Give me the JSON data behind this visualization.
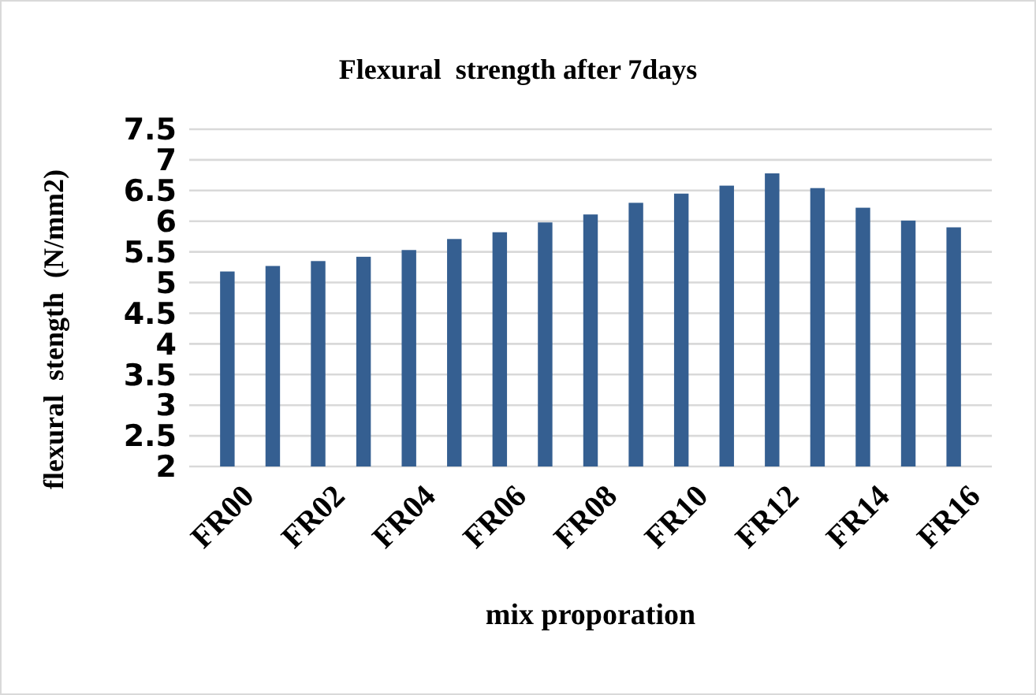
{
  "chart_data": {
    "type": "bar",
    "title": "Flexural  strength after 7days",
    "xlabel": "mix proporation",
    "ylabel": "flexural  stength  (N/mm2)",
    "categories": [
      "FR00",
      null,
      "FR02",
      null,
      "FR04",
      null,
      "FR06",
      null,
      "FR08",
      null,
      "FR10",
      null,
      "FR12",
      null,
      "FR14",
      null,
      "FR16"
    ],
    "values": [
      5.18,
      5.27,
      5.35,
      5.42,
      5.53,
      5.71,
      5.82,
      5.98,
      6.11,
      6.3,
      6.45,
      6.58,
      6.78,
      6.54,
      6.22,
      6.01,
      5.9
    ],
    "color": "#355f91",
    "ylim": [
      2,
      7.5
    ],
    "yticks": [
      2,
      2.5,
      3,
      3.5,
      4,
      4.5,
      5,
      5.5,
      6,
      6.5,
      7,
      7.5
    ],
    "grid": "y"
  }
}
